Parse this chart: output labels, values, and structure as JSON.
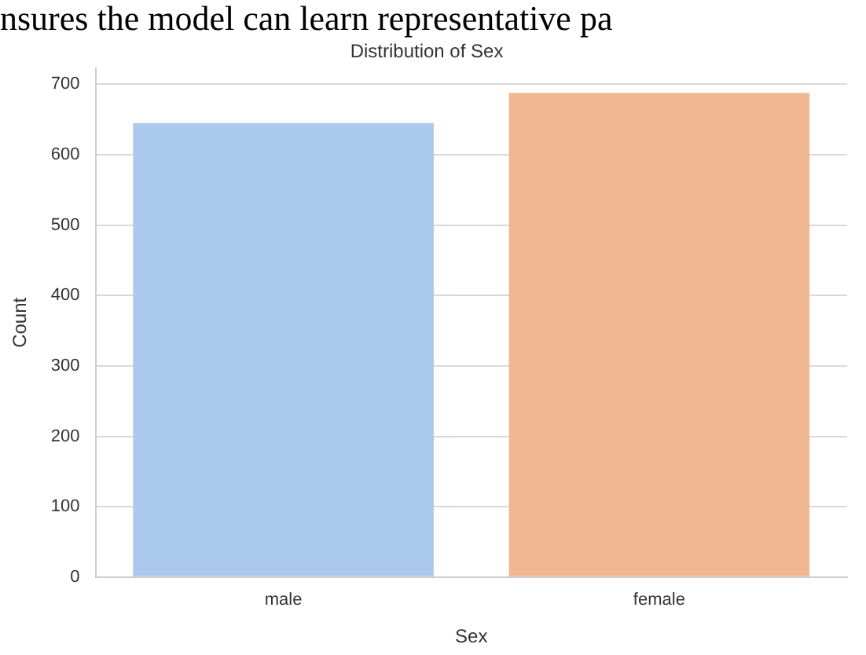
{
  "chart_data": {
    "type": "bar",
    "title": "Distribution of Sex",
    "xlabel": "Sex",
    "ylabel": "Count",
    "categories": [
      "male",
      "female"
    ],
    "values": [
      645,
      688
    ],
    "colors": [
      "#abc9ec",
      "#f0b793"
    ],
    "ylim": [
      0,
      723
    ],
    "yticks": [
      0,
      100,
      200,
      300,
      400,
      500,
      600,
      700
    ],
    "grid": "y",
    "legend": false,
    "annotations": [
      "nsures the model can learn representative pa"
    ]
  }
}
